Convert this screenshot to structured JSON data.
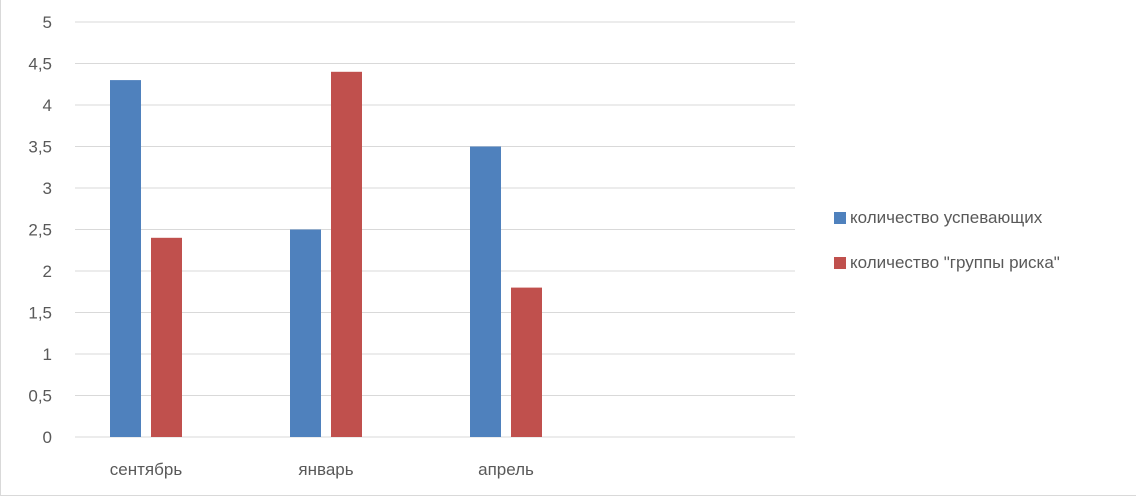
{
  "chart_data": {
    "type": "bar",
    "title": "",
    "xlabel": "",
    "ylabel": "",
    "categories": [
      "сентябрь",
      "январь",
      "апрель"
    ],
    "series": [
      {
        "name": "количество успевающих",
        "values": [
          4.3,
          2.5,
          3.5
        ],
        "color": "#4f81bd"
      },
      {
        "name": "количество \"группы риска\"",
        "values": [
          2.4,
          4.4,
          1.8
        ],
        "color": "#c0504d"
      }
    ],
    "ylim": [
      0,
      5
    ],
    "yticks": [
      "0",
      "0,5",
      "1",
      "1,5",
      "2",
      "2,5",
      "3",
      "3,5",
      "4",
      "4,5",
      "5"
    ],
    "grid": true,
    "gridline_color": "#d9d9d9",
    "legend_placement": "right"
  }
}
